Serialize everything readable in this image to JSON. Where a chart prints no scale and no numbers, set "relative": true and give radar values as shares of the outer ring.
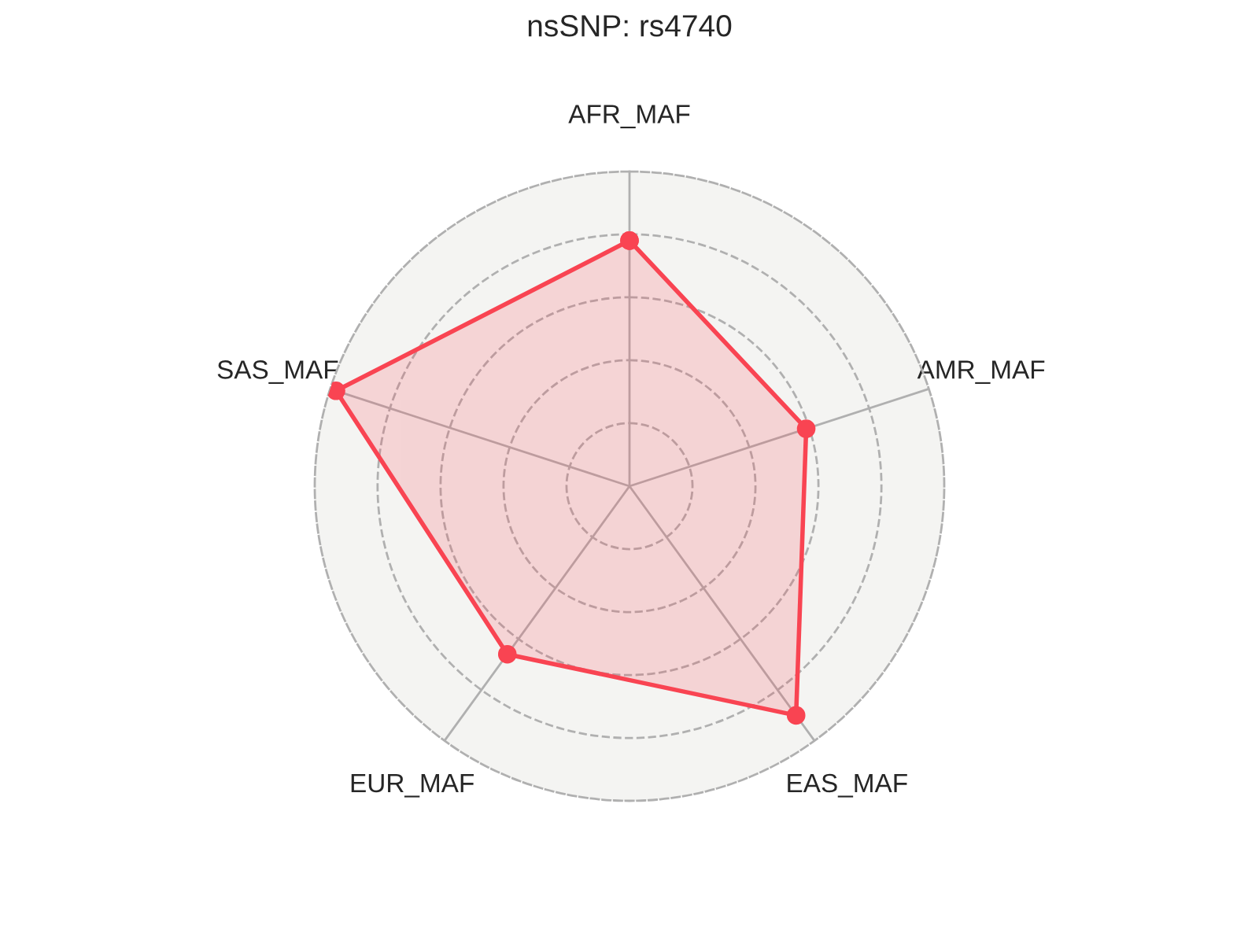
{
  "chart_data": {
    "type": "radar",
    "title": "nsSNP: rs4740",
    "relative": true,
    "grid": true,
    "marker": "circle",
    "line_style": "solid",
    "categories": [
      "AFR_MAF",
      "AMR_MAF",
      "EAS_MAF",
      "EUR_MAF",
      "SAS_MAF"
    ],
    "series": [
      {
        "color": "#f94452",
        "values": [
          0.78,
          0.59,
          0.9,
          0.66,
          0.98
        ]
      }
    ]
  }
}
